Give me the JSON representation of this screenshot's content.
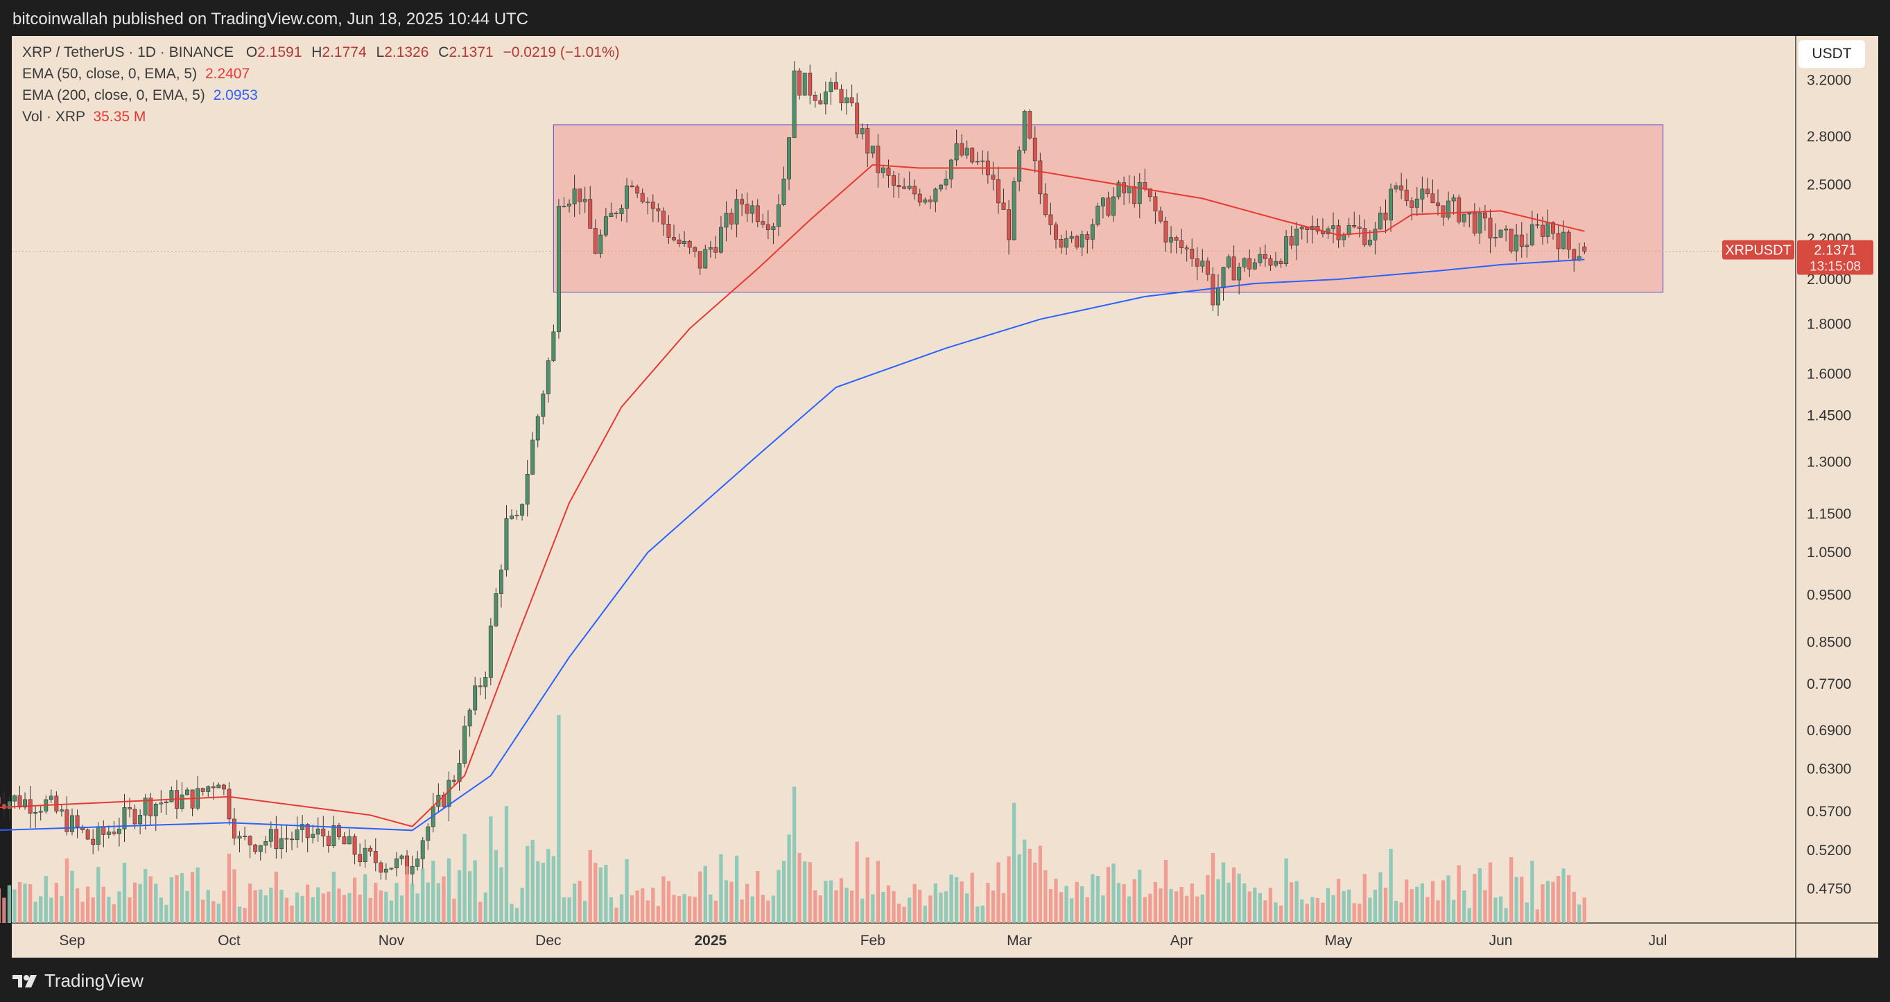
{
  "header": {
    "published": "bitcoinwallah published on TradingView.com, Jun 18, 2025 10:44 UTC"
  },
  "legend": {
    "symbol": "XRP / TetherUS · 1D · BINANCE",
    "o_label": "O",
    "o": "2.1591",
    "h_label": "H",
    "h": "2.1774",
    "l_label": "L",
    "l": "2.1326",
    "c_label": "C",
    "c": "2.1371",
    "change": "−0.0219 (−1.01%)",
    "ema50_label": "EMA (50, close, 0, EMA, 5)",
    "ema50_value": "2.2407",
    "ema200_label": "EMA (200, close, 0, EMA, 5)",
    "ema200_value": "2.0953",
    "vol_label": "Vol · XRP",
    "vol_value": "35.35 M"
  },
  "currency_button": "USDT",
  "price_tag": {
    "ticker": "XRPUSDT",
    "price": "2.1371",
    "countdown": "13:15:08"
  },
  "footer": {
    "brand": "TradingView"
  },
  "colors": {
    "up": "#26a69a",
    "up_body": "#5c9a76",
    "down": "#d9534f",
    "ema50": "#e53935",
    "ema200": "#2962ff",
    "range_box": "#f1a29c",
    "bg": "#f1e1d1"
  },
  "chart_data": {
    "type": "candlestick",
    "scale": "log",
    "title": "XRP / TetherUS · 1D · BINANCE",
    "y_ticks": [
      3.2,
      2.8,
      2.5,
      2.2,
      2.0,
      1.8,
      1.6,
      1.45,
      1.3,
      1.15,
      1.05,
      0.95,
      0.85,
      0.77,
      0.69,
      0.63,
      0.57,
      0.52,
      0.475
    ],
    "y_tick_labels": [
      "3.2000",
      "2.8000",
      "2.5000",
      "2.2000",
      "2.0000",
      "1.8000",
      "1.6000",
      "1.4500",
      "1.3000",
      "1.1500",
      "1.0500",
      "0.9500",
      "0.8500",
      "0.7700",
      "0.6900",
      "0.6300",
      "0.5700",
      "0.5200",
      "0.4750"
    ],
    "x_labels": [
      {
        "label": "Sep",
        "date": "2024-09-01",
        "bold": false
      },
      {
        "label": "Oct",
        "date": "2024-10-01",
        "bold": false
      },
      {
        "label": "Nov",
        "date": "2024-11-01",
        "bold": false
      },
      {
        "label": "Dec",
        "date": "2024-12-01",
        "bold": false
      },
      {
        "label": "2025",
        "date": "2025-01-01",
        "bold": true
      },
      {
        "label": "Feb",
        "date": "2025-02-01",
        "bold": false
      },
      {
        "label": "Mar",
        "date": "2025-03-01",
        "bold": false
      },
      {
        "label": "Apr",
        "date": "2025-04-01",
        "bold": false
      },
      {
        "label": "May",
        "date": "2025-05-01",
        "bold": false
      },
      {
        "label": "Jun",
        "date": "2025-06-01",
        "bold": false
      },
      {
        "label": "Jul",
        "date": "2025-07-01",
        "bold": false
      }
    ],
    "range_box": {
      "from": "2024-12-02",
      "to": "2025-07-02",
      "top": 2.88,
      "bottom": 1.94
    },
    "current_price": 2.1371,
    "series": [
      {
        "name": "EMA (50, close, 0, EMA, 5)",
        "anchors": [
          [
            "2024-08-17",
            0.575
          ],
          [
            "2024-10-01",
            0.59
          ],
          [
            "2024-10-28",
            0.565
          ],
          [
            "2024-11-05",
            0.55
          ],
          [
            "2024-11-15",
            0.62
          ],
          [
            "2024-11-25",
            0.86
          ],
          [
            "2024-12-05",
            1.18
          ],
          [
            "2024-12-15",
            1.48
          ],
          [
            "2024-12-28",
            1.78
          ],
          [
            "2025-01-10",
            2.05
          ],
          [
            "2025-01-20",
            2.3
          ],
          [
            "2025-02-01",
            2.62
          ],
          [
            "2025-02-10",
            2.6
          ],
          [
            "2025-03-01",
            2.6
          ],
          [
            "2025-03-20",
            2.5
          ],
          [
            "2025-04-05",
            2.42
          ],
          [
            "2025-04-20",
            2.3
          ],
          [
            "2025-05-01",
            2.22
          ],
          [
            "2025-05-10",
            2.24
          ],
          [
            "2025-05-15",
            2.33
          ],
          [
            "2025-06-01",
            2.35
          ],
          [
            "2025-06-17",
            2.24
          ]
        ]
      },
      {
        "name": "EMA (200, close, 0, EMA, 5)",
        "anchors": [
          [
            "2024-08-17",
            0.545
          ],
          [
            "2024-10-01",
            0.555
          ],
          [
            "2024-11-05",
            0.545
          ],
          [
            "2024-11-20",
            0.62
          ],
          [
            "2024-12-05",
            0.82
          ],
          [
            "2024-12-20",
            1.05
          ],
          [
            "2025-01-10",
            1.32
          ],
          [
            "2025-01-25",
            1.55
          ],
          [
            "2025-02-15",
            1.7
          ],
          [
            "2025-03-05",
            1.82
          ],
          [
            "2025-03-25",
            1.92
          ],
          [
            "2025-04-15",
            1.98
          ],
          [
            "2025-05-01",
            2.0
          ],
          [
            "2025-05-20",
            2.04
          ],
          [
            "2025-06-01",
            2.07
          ],
          [
            "2025-06-17",
            2.0953
          ]
        ]
      }
    ],
    "price_anchors": [
      [
        "2024-08-17",
        0.59
      ],
      [
        "2024-08-27",
        0.58
      ],
      [
        "2024-09-05",
        0.53
      ],
      [
        "2024-09-15",
        0.58
      ],
      [
        "2024-09-25",
        0.59
      ],
      [
        "2024-09-29",
        0.62
      ],
      [
        "2024-10-03",
        0.53
      ],
      [
        "2024-10-20",
        0.54
      ],
      [
        "2024-10-27",
        0.51
      ],
      [
        "2024-11-04",
        0.5
      ],
      [
        "2024-11-08",
        0.55
      ],
      [
        "2024-11-13",
        0.62
      ],
      [
        "2024-11-16",
        0.72
      ],
      [
        "2024-11-19",
        0.8
      ],
      [
        "2024-11-23",
        1.12
      ],
      [
        "2024-11-25",
        1.12
      ],
      [
        "2024-11-29",
        1.45
      ],
      [
        "2024-12-02",
        1.75
      ],
      [
        "2024-12-03",
        2.45
      ],
      [
        "2024-12-07",
        2.45
      ],
      [
        "2024-12-10",
        2.15
      ],
      [
        "2024-12-17",
        2.55
      ],
      [
        "2024-12-25",
        2.2
      ],
      [
        "2024-12-30",
        2.08
      ],
      [
        "2025-01-07",
        2.4
      ],
      [
        "2025-01-13",
        2.3
      ],
      [
        "2025-01-15",
        2.55
      ],
      [
        "2025-01-17",
        3.2
      ],
      [
        "2025-01-22",
        3.1
      ],
      [
        "2025-01-26",
        3.1
      ],
      [
        "2025-02-02",
        2.6
      ],
      [
        "2025-02-06",
        2.45
      ],
      [
        "2025-02-12",
        2.45
      ],
      [
        "2025-02-17",
        2.7
      ],
      [
        "2025-02-23",
        2.58
      ],
      [
        "2025-02-27",
        2.25
      ],
      [
        "2025-03-02",
        2.9
      ],
      [
        "2025-03-05",
        2.45
      ],
      [
        "2025-03-10",
        2.15
      ],
      [
        "2025-03-20",
        2.45
      ],
      [
        "2025-03-25",
        2.45
      ],
      [
        "2025-03-30",
        2.18
      ],
      [
        "2025-04-05",
        2.1
      ],
      [
        "2025-04-07",
        1.92
      ],
      [
        "2025-04-10",
        2.05
      ],
      [
        "2025-04-18",
        2.1
      ],
      [
        "2025-04-28",
        2.28
      ],
      [
        "2025-05-08",
        2.22
      ],
      [
        "2025-05-12",
        2.5
      ],
      [
        "2025-05-16",
        2.42
      ],
      [
        "2025-05-24",
        2.35
      ],
      [
        "2025-06-01",
        2.2
      ],
      [
        "2025-06-05",
        2.18
      ],
      [
        "2025-06-10",
        2.28
      ],
      [
        "2025-06-14",
        2.15
      ],
      [
        "2025-06-17",
        2.14
      ]
    ],
    "volume_axis_max_million": 700
  }
}
